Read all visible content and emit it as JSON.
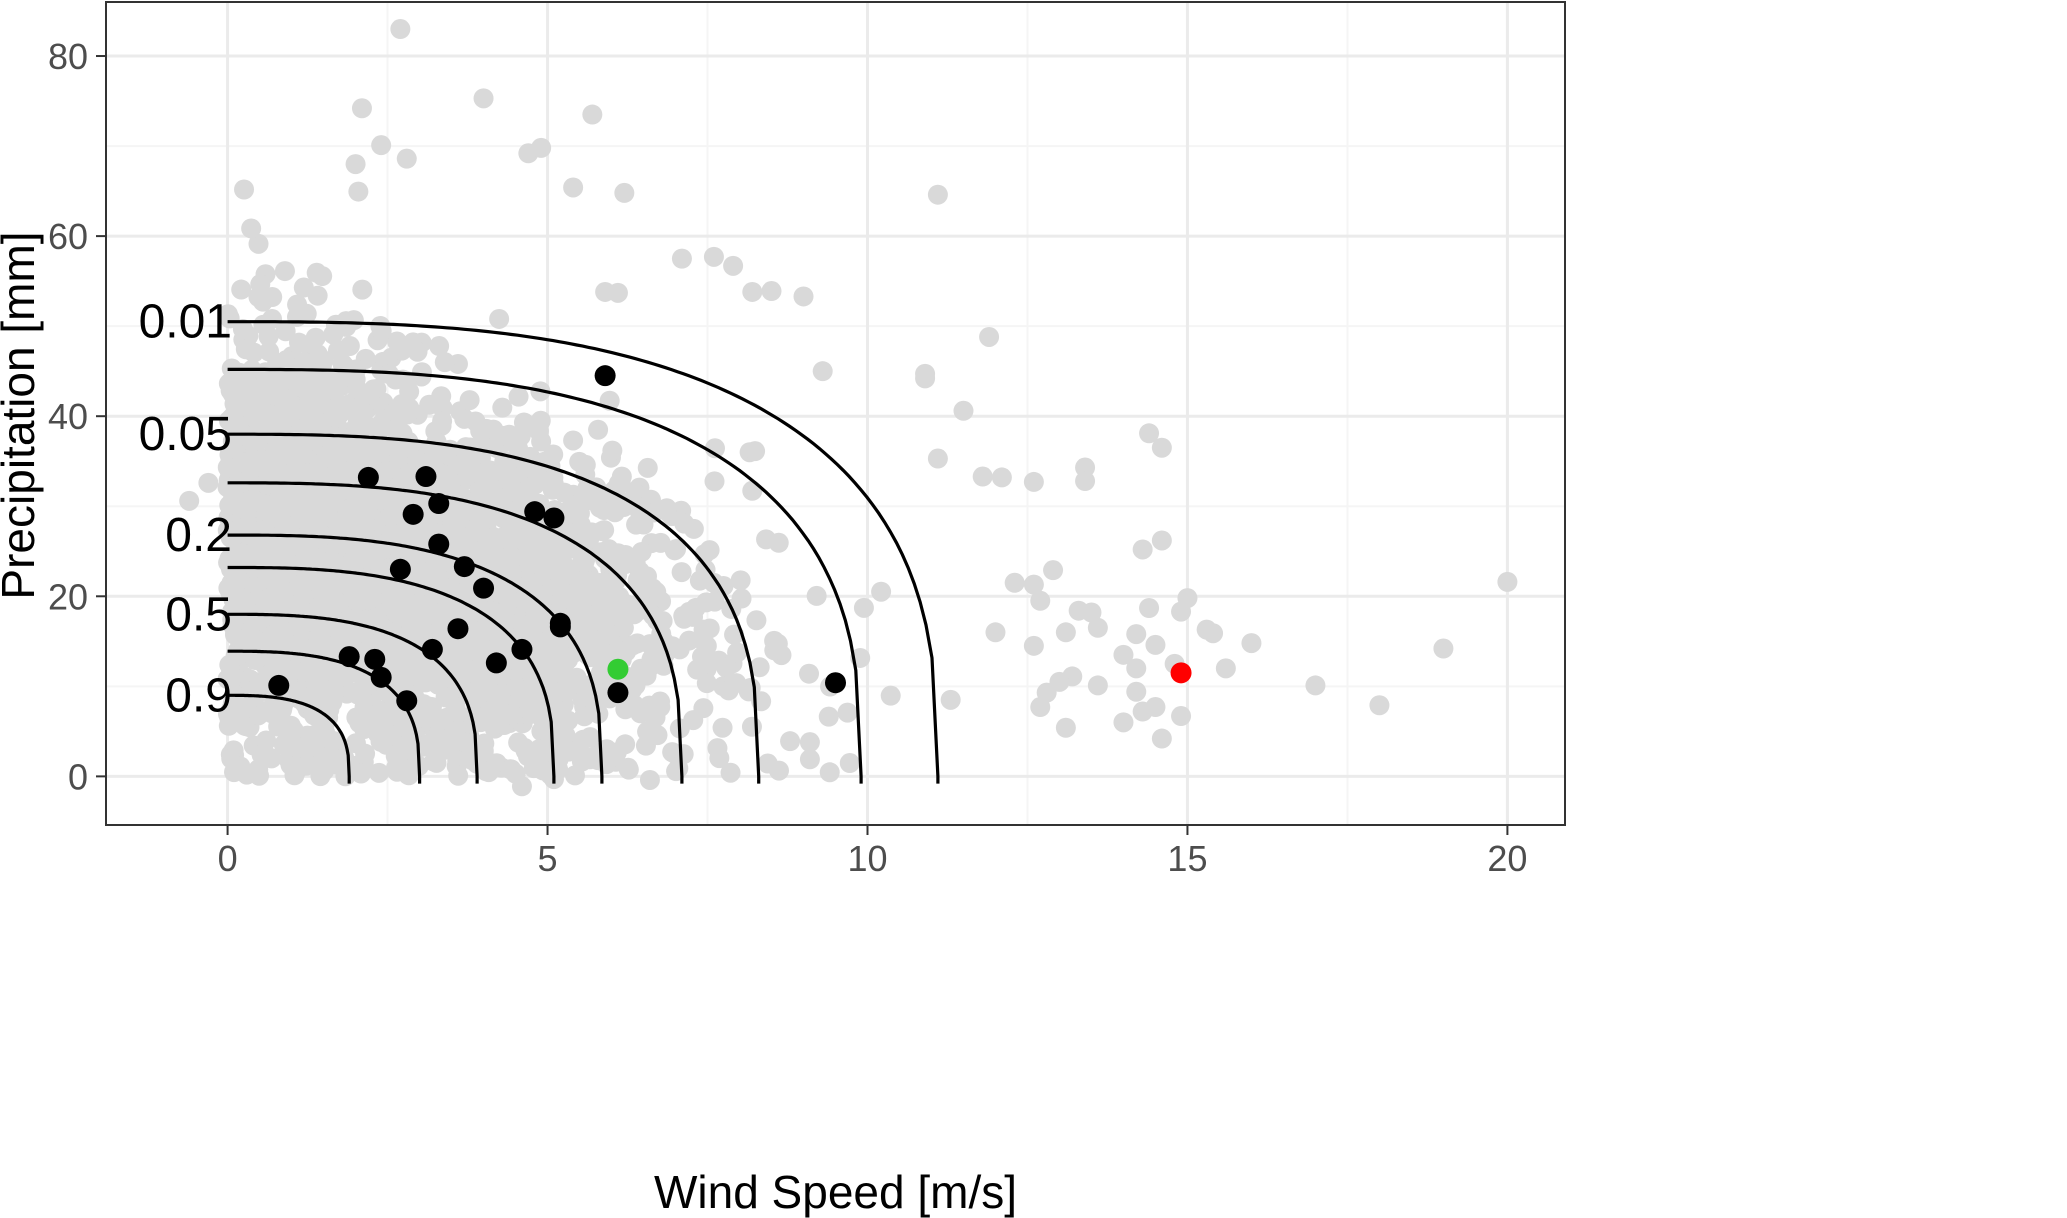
{
  "chart_data": {
    "type": "scatter",
    "title": "",
    "xlabel": "Wind Speed [m/s]",
    "ylabel": "Precipitation [mm]",
    "xlim": [
      -1.9,
      20.9
    ],
    "ylim": [
      -5.4,
      86.0
    ],
    "x_ticks": [
      0,
      5,
      10,
      15,
      20
    ],
    "y_ticks": [
      0,
      20,
      40,
      60,
      80
    ],
    "x_tick_labels": [
      "0",
      "5",
      "10",
      "15",
      "20"
    ],
    "y_tick_labels": [
      "0",
      "20",
      "40",
      "60",
      "80"
    ],
    "grid": true,
    "legend": "none",
    "colors": {
      "background_points": "#d9d9d9",
      "observed_points": "#000000",
      "highlight_green": "#33cc33",
      "highlight_red": "#ff0000",
      "contours": "#000000",
      "grid_major": "#ebebeb",
      "grid_minor": "#f5f5f5",
      "panel_border": "#333333"
    },
    "contours": [
      {
        "x_max": 1.9,
        "y_max": 9.0
      },
      {
        "x_max": 3.0,
        "y_max": 13.9
      },
      {
        "x_max": 3.9,
        "y_max": 18.0
      },
      {
        "x_max": 5.1,
        "y_max": 23.2
      },
      {
        "x_max": 5.85,
        "y_max": 26.8
      },
      {
        "x_max": 7.1,
        "y_max": 32.6
      },
      {
        "x_max": 8.3,
        "y_max": 38.0
      },
      {
        "x_max": 9.9,
        "y_max": 45.2
      },
      {
        "x_max": 11.1,
        "y_max": 50.5
      }
    ],
    "contour_labels": [
      {
        "text": "0.01",
        "y": 50.5
      },
      {
        "text": "0.05",
        "y": 38.0
      },
      {
        "text": "0.2",
        "y": 26.8
      },
      {
        "text": "0.5",
        "y": 18.0
      },
      {
        "text": "0.9",
        "y": 9.0
      }
    ],
    "background_scatter": {
      "count": 3200,
      "note_visible": "grey point cloud",
      "outliers": [
        [
          2.7,
          83.0
        ],
        [
          4.0,
          75.3
        ],
        [
          5.7,
          73.5
        ],
        [
          2.1,
          74.2
        ],
        [
          4.7,
          69.2
        ],
        [
          4.9,
          69.8
        ],
        [
          2.4,
          70.1
        ],
        [
          2.0,
          68.0
        ],
        [
          2.8,
          68.6
        ],
        [
          11.1,
          64.6
        ],
        [
          6.2,
          64.8
        ],
        [
          5.4,
          65.4
        ],
        [
          5.9,
          53.8
        ],
        [
          6.1,
          53.7
        ],
        [
          8.2,
          53.8
        ],
        [
          8.5,
          53.9
        ],
        [
          9.0,
          53.3
        ],
        [
          7.6,
          57.7
        ],
        [
          7.9,
          56.7
        ],
        [
          7.1,
          57.5
        ],
        [
          11.9,
          48.8
        ],
        [
          9.3,
          45.0
        ],
        [
          10.9,
          44.2
        ],
        [
          10.9,
          44.7
        ],
        [
          11.5,
          40.6
        ],
        [
          14.4,
          38.1
        ],
        [
          14.6,
          36.5
        ],
        [
          13.4,
          34.3
        ],
        [
          13.4,
          32.8
        ],
        [
          12.6,
          32.7
        ],
        [
          11.8,
          33.3
        ],
        [
          12.1,
          33.2
        ],
        [
          11.1,
          35.3
        ],
        [
          14.6,
          26.2
        ],
        [
          14.3,
          25.2
        ],
        [
          12.3,
          21.5
        ],
        [
          12.6,
          21.3
        ],
        [
          12.9,
          22.9
        ],
        [
          13.3,
          18.4
        ],
        [
          13.5,
          18.2
        ],
        [
          14.2,
          15.8
        ],
        [
          14.4,
          18.7
        ],
        [
          15.0,
          19.8
        ],
        [
          14.9,
          18.3
        ],
        [
          15.3,
          16.3
        ],
        [
          15.4,
          15.9
        ],
        [
          15.6,
          12.0
        ],
        [
          16.0,
          14.8
        ],
        [
          14.8,
          12.5
        ],
        [
          14.5,
          14.6
        ],
        [
          14.2,
          12.0
        ],
        [
          14.0,
          13.5
        ],
        [
          14.2,
          9.4
        ],
        [
          14.3,
          7.2
        ],
        [
          14.5,
          7.7
        ],
        [
          14.6,
          4.2
        ],
        [
          14.0,
          6.0
        ],
        [
          14.9,
          6.7
        ],
        [
          13.6,
          10.1
        ],
        [
          13.2,
          11.1
        ],
        [
          13.0,
          10.5
        ],
        [
          13.6,
          16.5
        ],
        [
          13.1,
          16.0
        ],
        [
          12.7,
          19.5
        ],
        [
          12.6,
          14.5
        ],
        [
          12.8,
          9.3
        ],
        [
          12.7,
          7.7
        ],
        [
          13.1,
          5.4
        ],
        [
          17.0,
          10.1
        ],
        [
          18.0,
          7.9
        ],
        [
          19.0,
          14.2
        ],
        [
          20.0,
          21.6
        ],
        [
          -0.6,
          30.6
        ],
        [
          -0.3,
          32.6
        ],
        [
          0.2,
          1.1
        ],
        [
          0.3,
          0.2
        ],
        [
          4.6,
          -1.1
        ],
        [
          5.1,
          -0.3
        ],
        [
          6.6,
          -0.4
        ],
        [
          9.1,
          1.9
        ],
        [
          9.1,
          3.8
        ],
        [
          11.3,
          8.5
        ],
        [
          12.0,
          16.0
        ]
      ]
    },
    "observed_points": [
      [
        0.8,
        10.1
      ],
      [
        1.9,
        13.3
      ],
      [
        2.3,
        13.0
      ],
      [
        2.4,
        11.0
      ],
      [
        2.8,
        8.4
      ],
      [
        2.2,
        33.2
      ],
      [
        3.1,
        33.3
      ],
      [
        3.3,
        30.3
      ],
      [
        2.9,
        29.1
      ],
      [
        3.3,
        25.8
      ],
      [
        2.7,
        23.0
      ],
      [
        3.7,
        23.3
      ],
      [
        4.0,
        20.9
      ],
      [
        3.6,
        16.4
      ],
      [
        3.2,
        14.1
      ],
      [
        4.2,
        12.6
      ],
      [
        4.6,
        14.1
      ],
      [
        4.8,
        29.4
      ],
      [
        5.1,
        28.7
      ],
      [
        5.2,
        17.0
      ],
      [
        5.2,
        16.6
      ],
      [
        5.9,
        44.5
      ],
      [
        6.1,
        9.3
      ],
      [
        9.5,
        10.4
      ]
    ],
    "highlight_points": [
      {
        "x": 6.1,
        "y": 11.9,
        "color": "#33cc33"
      },
      {
        "x": 14.9,
        "y": 11.5,
        "color": "#ff0000"
      }
    ]
  }
}
